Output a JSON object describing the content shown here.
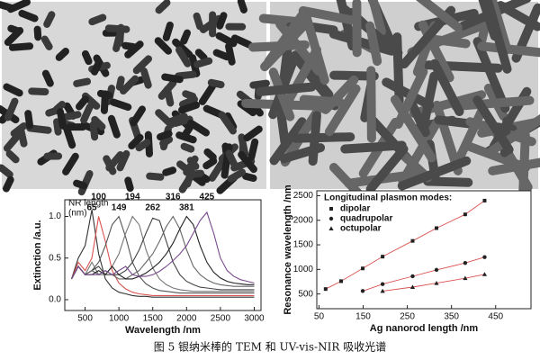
{
  "caption": "图 5 银纳米棒的 TEM 和 UV-vis-NIR 吸收光谱",
  "chart_data": [
    {
      "type": "line",
      "xlabel": "Wavelength /nm",
      "ylabel": "Extinction /a.u.",
      "annotations": [
        "NR length",
        "(nm)"
      ],
      "xlim": [
        200,
        3100
      ],
      "xticks": [
        500,
        1000,
        1500,
        2000,
        2500,
        3000
      ],
      "ylim": [
        -0.13,
        1.2
      ],
      "yticks": [
        {
          "value": 0,
          "label": "0.0"
        },
        0.5,
        {
          "value": 1,
          "label": "1.0"
        }
      ],
      "x": [
        300,
        400,
        500,
        600,
        700,
        800,
        900,
        1000,
        1100,
        1200,
        1300,
        1400,
        1500,
        1600,
        1700,
        1800,
        1900,
        2000,
        2100,
        2200,
        2300,
        2400,
        2500,
        2600,
        2700,
        2800,
        2900,
        3000
      ],
      "series": [
        {
          "name": "65",
          "color": "#333333",
          "values": [
            0.25,
            0.5,
            0.65,
            1.08,
            0.55,
            0.25,
            0.14,
            0.09,
            0.07,
            0.05,
            0.04,
            0.04,
            0.03,
            0.03,
            0.03,
            0.03,
            0.03,
            0.03,
            0.03,
            0.03,
            0.03,
            0.03,
            0.03,
            0.03,
            0.03,
            0.03,
            0.03,
            0.03
          ]
        },
        {
          "name": "100",
          "color": "#d9534f",
          "values": [
            0.25,
            0.45,
            0.35,
            0.5,
            1.0,
            0.7,
            0.35,
            0.2,
            0.13,
            0.09,
            0.07,
            0.06,
            0.05,
            0.05,
            0.05,
            0.05,
            0.05,
            0.05,
            0.05,
            0.05,
            0.05,
            0.05,
            0.05,
            0.05,
            0.05,
            0.05,
            0.05,
            0.05
          ]
        },
        {
          "name": "149",
          "color": "#555555",
          "values": [
            0.25,
            0.4,
            0.3,
            0.35,
            0.45,
            0.65,
            0.9,
            1.0,
            0.75,
            0.45,
            0.28,
            0.19,
            0.14,
            0.11,
            0.1,
            0.09,
            0.08,
            0.08,
            0.08,
            0.08,
            0.08,
            0.08,
            0.08,
            0.08,
            0.08,
            0.08,
            0.08,
            0.08
          ]
        },
        {
          "name": "194",
          "color": "#777777",
          "values": [
            0.25,
            0.4,
            0.3,
            0.45,
            0.3,
            0.3,
            0.4,
            0.55,
            0.8,
            1.0,
            0.9,
            0.6,
            0.38,
            0.25,
            0.18,
            0.14,
            0.12,
            0.11,
            0.1,
            0.1,
            0.1,
            0.1,
            0.1,
            0.1,
            0.1,
            0.1,
            0.1,
            0.1
          ]
        },
        {
          "name": "262",
          "color": "#444444",
          "values": [
            0.25,
            0.4,
            0.3,
            0.35,
            0.4,
            0.3,
            0.3,
            0.3,
            0.35,
            0.45,
            0.6,
            0.8,
            0.98,
            0.95,
            0.7,
            0.45,
            0.3,
            0.22,
            0.18,
            0.15,
            0.14,
            0.13,
            0.12,
            0.12,
            0.12,
            0.12,
            0.12,
            0.12
          ]
        },
        {
          "name": "316",
          "color": "#666666",
          "values": [
            0.25,
            0.4,
            0.3,
            0.35,
            0.3,
            0.35,
            0.3,
            0.25,
            0.25,
            0.3,
            0.35,
            0.45,
            0.55,
            0.7,
            0.88,
            1.0,
            0.85,
            0.6,
            0.4,
            0.3,
            0.24,
            0.2,
            0.18,
            0.17,
            0.16,
            0.16,
            0.16,
            0.16
          ]
        },
        {
          "name": "381",
          "color": "#222222",
          "values": [
            0.25,
            0.4,
            0.3,
            0.3,
            0.35,
            0.3,
            0.4,
            0.3,
            0.25,
            0.25,
            0.28,
            0.32,
            0.38,
            0.45,
            0.55,
            0.68,
            0.85,
            1.0,
            0.9,
            0.65,
            0.45,
            0.33,
            0.26,
            0.22,
            0.2,
            0.19,
            0.18,
            0.18
          ]
        },
        {
          "name": "425",
          "color": "#7a4b8f",
          "values": [
            0.25,
            0.4,
            0.3,
            0.3,
            0.3,
            0.35,
            0.3,
            0.35,
            0.4,
            0.3,
            0.28,
            0.28,
            0.3,
            0.34,
            0.4,
            0.47,
            0.55,
            0.65,
            0.8,
            0.95,
            1.05,
            0.8,
            0.5,
            0.35,
            0.28,
            0.24,
            0.22,
            0.2
          ]
        }
      ]
    },
    {
      "type": "scatter",
      "xlabel": "Ag nanorod length /nm",
      "ylabel": "Resonance wavelength /nm",
      "legend_title": "Longitudinal plasmon modes:",
      "xlim": [
        45,
        530
      ],
      "xticks": [
        50,
        150,
        250,
        350,
        450
      ],
      "ylim": [
        200,
        2600
      ],
      "yticks": [
        500,
        1000,
        1500,
        2000,
        2500
      ],
      "series": [
        {
          "name": "dipolar",
          "color": "#222222",
          "marker": "square",
          "x": [
            65,
            100,
            149,
            194,
            262,
            316,
            381,
            425
          ],
          "values": [
            600,
            760,
            1020,
            1260,
            1580,
            1840,
            2120,
            2400
          ]
        },
        {
          "name": "quadrupolar",
          "color": "#222222",
          "marker": "circle",
          "x": [
            149,
            194,
            262,
            316,
            381,
            425
          ],
          "values": [
            560,
            700,
            860,
            990,
            1130,
            1250
          ]
        },
        {
          "name": "octupolar",
          "color": "#222222",
          "marker": "triangle",
          "x": [
            194,
            262,
            316,
            381,
            425
          ],
          "values": [
            560,
            640,
            720,
            820,
            900
          ]
        }
      ]
    }
  ]
}
